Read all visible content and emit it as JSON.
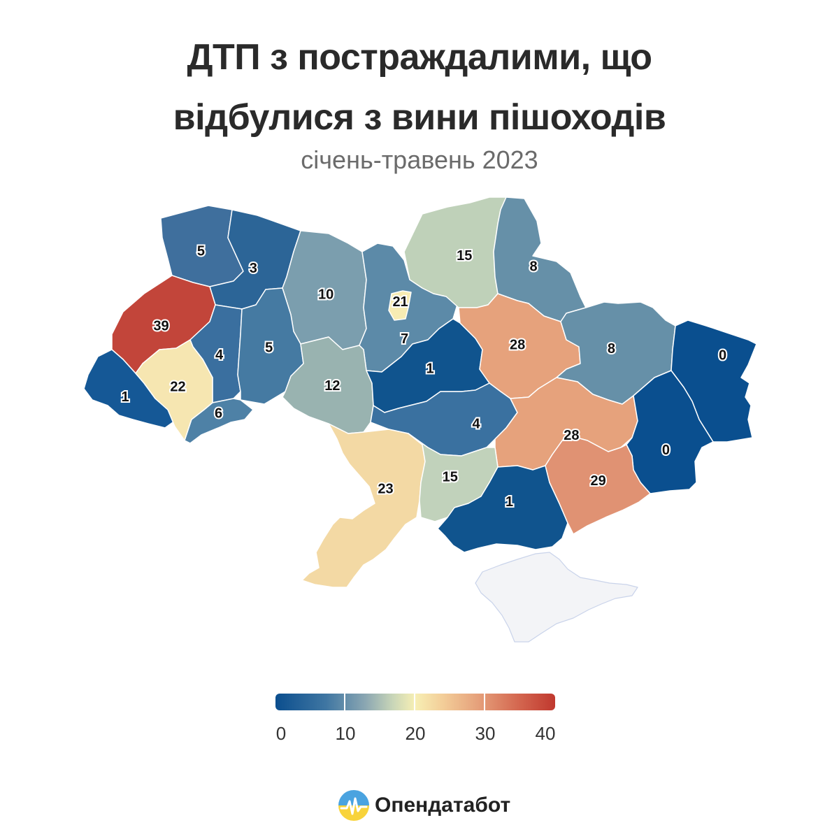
{
  "title_line1": "ДТП з постраждалими, що",
  "title_line2": "відбулися з вини пішоходів",
  "subtitle": "січень-травень 2023",
  "regions": [
    {
      "name": "Volyn",
      "value": 5,
      "color": "#3f6f9d"
    },
    {
      "name": "Rivne",
      "value": 3,
      "color": "#2c6597"
    },
    {
      "name": "Zhytomyr",
      "value": 10,
      "color": "#7b9eae"
    },
    {
      "name": "Kyiv oblast",
      "value": 7,
      "color": "#5c8aa8"
    },
    {
      "name": "Kyiv city",
      "value": 21,
      "color": "#f7ecb3"
    },
    {
      "name": "Chernihiv",
      "value": 15,
      "color": "#bfd1b9"
    },
    {
      "name": "Sumy",
      "value": 8,
      "color": "#6690a8"
    },
    {
      "name": "Lviv",
      "value": 39,
      "color": "#c2453a"
    },
    {
      "name": "Ternopil",
      "value": 4,
      "color": "#3a6f9f"
    },
    {
      "name": "Khmelnytskyi",
      "value": 5,
      "color": "#457aa2"
    },
    {
      "name": "Vinnytsia",
      "value": 12,
      "color": "#99b3b0"
    },
    {
      "name": "Cherkasy",
      "value": 1,
      "color": "#10548e"
    },
    {
      "name": "Poltava",
      "value": 28,
      "color": "#e6a27c"
    },
    {
      "name": "Kharkiv",
      "value": 8,
      "color": "#6690a8"
    },
    {
      "name": "Luhansk",
      "value": 0,
      "color": "#0a4f8f"
    },
    {
      "name": "Zakarpattia",
      "value": 1,
      "color": "#155896"
    },
    {
      "name": "Ivano-Frankivsk",
      "value": 22,
      "color": "#f6e6b1"
    },
    {
      "name": "Chernivtsi",
      "value": 6,
      "color": "#4e81a6"
    },
    {
      "name": "Kirovohrad",
      "value": 4,
      "color": "#3a71a0"
    },
    {
      "name": "Dnipropetrovsk",
      "value": 28,
      "color": "#e6a27c"
    },
    {
      "name": "Donetsk",
      "value": 0,
      "color": "#0a4f8f"
    },
    {
      "name": "Odesa",
      "value": 23,
      "color": "#f3d9a4"
    },
    {
      "name": "Mykolaiv",
      "value": 15,
      "color": "#c1d2bb"
    },
    {
      "name": "Kherson",
      "value": 1,
      "color": "#10548e"
    },
    {
      "name": "Zaporizhzhia",
      "value": 29,
      "color": "#e09273"
    },
    {
      "name": "Crimea",
      "value": null,
      "color": "#f3f4f7"
    }
  ],
  "legend": {
    "ticks": [
      "0",
      "10",
      "20",
      "30",
      "40"
    ],
    "min": 0,
    "max": 40
  },
  "logo": {
    "text": "Опендатабот",
    "icon": "opendatabot-logo-icon"
  }
}
